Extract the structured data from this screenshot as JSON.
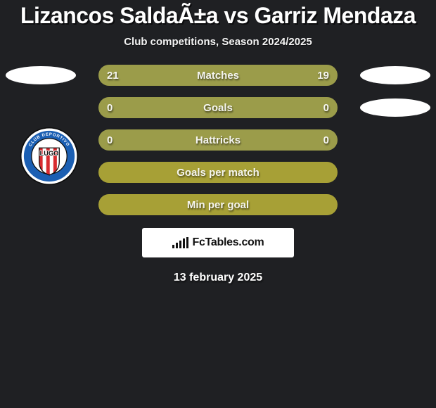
{
  "title": "Lizancos SaldaÃ±a vs Garriz Mendaza",
  "subtitle": "Club competitions, Season 2024/2025",
  "colors": {
    "background": "#1f2023",
    "pill_data": "#9b9c4a",
    "pill_summary": "#a7a036",
    "text": "#ffffff",
    "card_bg": "#ffffff",
    "card_text": "#111111"
  },
  "rows": [
    {
      "type": "data",
      "label": "Matches",
      "left": "21",
      "right": "19",
      "show_left_oval": true,
      "show_right_oval": true
    },
    {
      "type": "data",
      "label": "Goals",
      "left": "0",
      "right": "0",
      "show_left_oval": false,
      "show_right_oval": true
    },
    {
      "type": "data",
      "label": "Hattricks",
      "left": "0",
      "right": "0",
      "show_left_oval": false,
      "show_right_oval": false
    },
    {
      "type": "summary",
      "label": "Goals per match"
    },
    {
      "type": "summary",
      "label": "Min per goal"
    }
  ],
  "footer_brand": "FcTables.com",
  "date": "13 february 2025",
  "badge": {
    "name": "CD Lugo",
    "text_top": "CLUB DEPORTIVO",
    "text_main": "LUGO",
    "ring_color": "#1b5fb3",
    "ring_text_color": "#ffffff",
    "stripe_red": "#d82b2f",
    "stripe_white": "#ffffff",
    "outline": "#0c0c0c"
  }
}
